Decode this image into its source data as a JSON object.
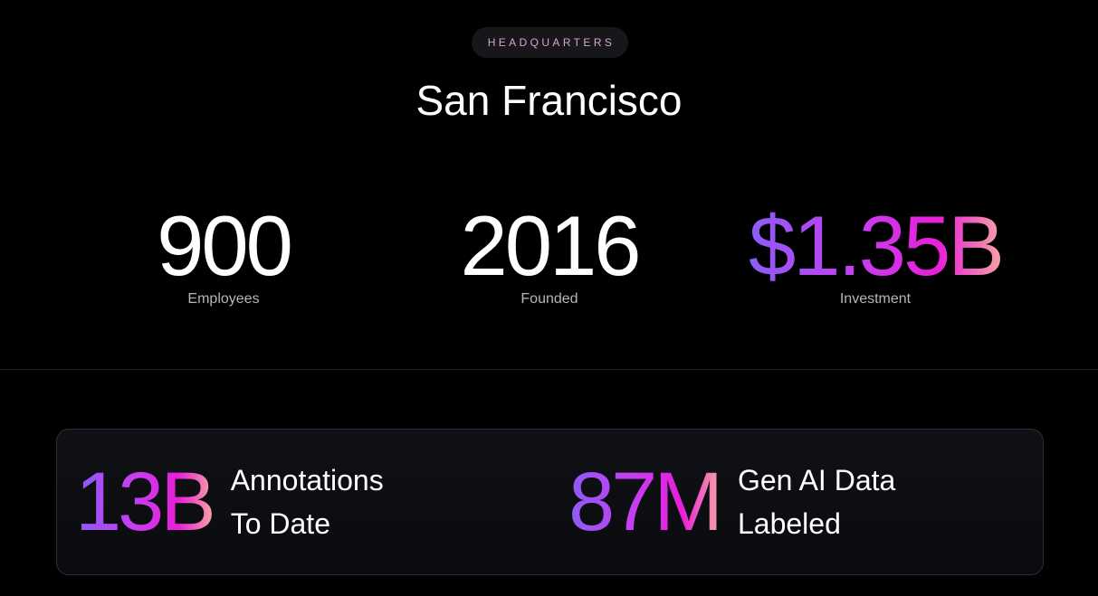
{
  "badge": "HEADQUARTERS",
  "title": "San Francisco",
  "stats": [
    {
      "value": "900",
      "label": "Employees"
    },
    {
      "value": "2016",
      "label": "Founded"
    },
    {
      "value": "$1.35B",
      "label": "Investment"
    }
  ],
  "highlights": [
    {
      "value": "13B",
      "label": "Annotations To Date"
    },
    {
      "value": "87M",
      "label": "Gen AI Data Labeled"
    }
  ]
}
